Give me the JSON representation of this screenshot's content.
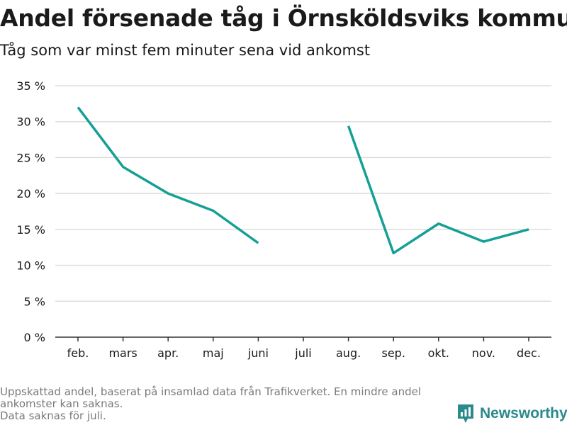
{
  "colors": {
    "line": "#14a095",
    "grid": "#dddddd",
    "axis": "#333333",
    "tick_text": "#1a1a1a",
    "footnote": "#7a7a7a",
    "brand": "#2a8a8c"
  },
  "footnote": {
    "line1": "Uppskattad andel, baserat på insamlad data från Trafikverket. En mindre andel ankomster kan saknas.",
    "line2": "Data saknas för juli."
  },
  "brand": {
    "name": "Newsworthy",
    "icon": "newsworthy-logo-icon"
  },
  "chart_data": {
    "type": "line",
    "title": "Andel försenade tåg i Örnsköldsviks kommun",
    "subtitle": "Tåg som var minst fem minuter sena vid ankomst",
    "xlabel": "",
    "ylabel": "",
    "categories": [
      "feb.",
      "mars",
      "apr.",
      "maj",
      "juni",
      "juli",
      "aug.",
      "sep.",
      "okt.",
      "nov.",
      "dec."
    ],
    "series": [
      {
        "values": [
          32.0,
          23.7,
          20.0,
          17.6,
          13.1,
          null,
          29.4,
          11.7,
          15.8,
          13.3,
          15.0
        ]
      }
    ],
    "ylim": [
      0,
      35
    ],
    "yticks": [
      0,
      5,
      10,
      15,
      20,
      25,
      30,
      35
    ],
    "ytick_labels": [
      "0 %",
      "5 %",
      "10 %",
      "15 %",
      "20 %",
      "25 %",
      "30 %",
      "35 %"
    ],
    "grid": "horizontal",
    "legend": "none"
  }
}
